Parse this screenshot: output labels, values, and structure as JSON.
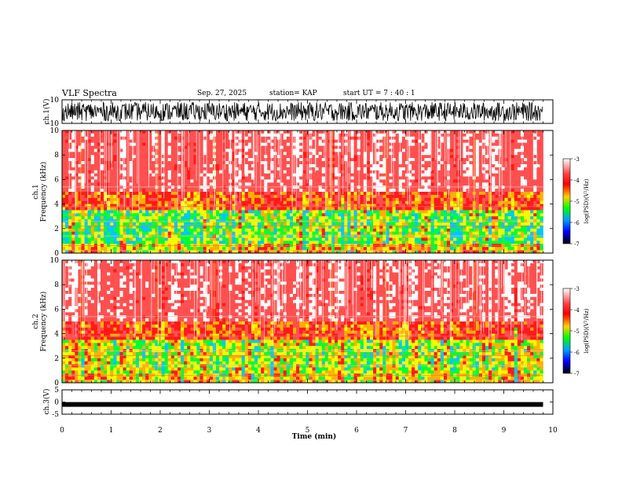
{
  "header": {
    "title": "VLF Spectra",
    "date": "Sep. 27, 2025",
    "station": "station= KAP",
    "start": "start  UT  =   7 : 40 : 1"
  },
  "chart_data": [
    {
      "type": "line",
      "title": "ch.1(V)",
      "ylabel": "ch.1(V)",
      "ylim": [
        -10,
        10
      ],
      "yticks": [
        "10",
        "-10"
      ],
      "x": [
        0,
        9.8
      ],
      "description_values": "noise signal oscillating between about -8 and 8 V"
    },
    {
      "type": "heatmap",
      "ylabel": "ch.1\nFrequency (kHz)",
      "ylim": [
        0,
        10
      ],
      "yticks": [
        "0",
        "2",
        "4",
        "6",
        "8",
        "10"
      ],
      "xlim": [
        0,
        9.8
      ],
      "colorbar": {
        "label": "log(PSD)(V²/Hz)",
        "ticks": [
          "-3",
          "-4",
          "-5",
          "-6",
          "-7"
        ]
      }
    },
    {
      "type": "heatmap",
      "ylabel": "ch.2\nFrequency (kHz)",
      "ylim": [
        0,
        10
      ],
      "yticks": [
        "0",
        "2",
        "4",
        "6",
        "8",
        "10"
      ],
      "xlim": [
        0,
        9.8
      ],
      "colorbar": {
        "label": "log(PSD)(V²/Hz)",
        "ticks": [
          "-3",
          "-4",
          "-5",
          "-6",
          "-7"
        ]
      }
    },
    {
      "type": "line",
      "ylabel": "ch.3(V)",
      "ylim": [
        -5,
        5
      ],
      "yticks": [
        "5",
        "0",
        "-5"
      ],
      "x": [
        0,
        9.8
      ],
      "level": -1
    }
  ],
  "xaxis": {
    "label": "Time  (min)",
    "xlim": [
      0,
      10
    ],
    "ticks": [
      "0",
      "1",
      "2",
      "3",
      "4",
      "5",
      "6",
      "7",
      "8",
      "9",
      "10"
    ]
  },
  "colors": {
    "trace": "#000000",
    "background": "#ffffff"
  }
}
